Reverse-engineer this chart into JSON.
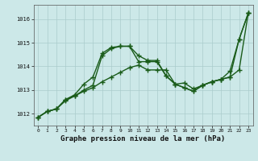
{
  "xlabel": "Graphe pression niveau de la mer (hPa)",
  "xlim": [
    -0.5,
    23.5
  ],
  "ylim": [
    1011.5,
    1016.6
  ],
  "yticks": [
    1012,
    1013,
    1014,
    1015,
    1016
  ],
  "xticks": [
    0,
    1,
    2,
    3,
    4,
    5,
    6,
    7,
    8,
    9,
    10,
    11,
    12,
    13,
    14,
    15,
    16,
    17,
    18,
    19,
    20,
    21,
    22,
    23
  ],
  "bg_color": "#cce8e8",
  "grid_color": "#aacccc",
  "line_color": "#1a5c1a",
  "line1_x": [
    0,
    1,
    2,
    3,
    4,
    5,
    6,
    7,
    8,
    9,
    10,
    11,
    12,
    13,
    14,
    15,
    16,
    17,
    18,
    19,
    20,
    21,
    22,
    23
  ],
  "line1_y": [
    1011.85,
    1012.1,
    1012.2,
    1012.6,
    1012.75,
    1012.95,
    1013.1,
    1013.35,
    1013.55,
    1013.75,
    1013.95,
    1014.05,
    1013.85,
    1013.85,
    1013.85,
    1013.25,
    1013.3,
    1013.05,
    1013.2,
    1013.35,
    1013.45,
    1013.55,
    1013.85,
    1016.25
  ],
  "line2_x": [
    0,
    1,
    2,
    3,
    4,
    5,
    6,
    7,
    8,
    9,
    10,
    11,
    12,
    13,
    14,
    15,
    16,
    17,
    18,
    19,
    20,
    21,
    22,
    23
  ],
  "line2_y": [
    1011.85,
    1012.1,
    1012.2,
    1012.6,
    1012.8,
    1013.25,
    1013.55,
    1014.55,
    1014.8,
    1014.85,
    1014.85,
    1014.2,
    1014.2,
    1014.2,
    1013.6,
    1013.25,
    1013.1,
    1012.95,
    1013.2,
    1013.35,
    1013.45,
    1013.55,
    1015.15,
    1016.25
  ],
  "line3_x": [
    0,
    1,
    2,
    3,
    4,
    5,
    6,
    7,
    8,
    9,
    10,
    11,
    12,
    13,
    14,
    15,
    16,
    17,
    18,
    19,
    20,
    21,
    22,
    23
  ],
  "line3_y": [
    1011.85,
    1012.1,
    1012.2,
    1012.55,
    1012.75,
    1013.0,
    1013.2,
    1014.45,
    1014.75,
    1014.85,
    1014.85,
    1014.45,
    1014.25,
    1014.25,
    1013.6,
    1013.25,
    1013.1,
    1012.95,
    1013.2,
    1013.35,
    1013.45,
    1013.8,
    1015.15,
    1016.25
  ],
  "line_width": 1.0,
  "marker_size": 4.0
}
